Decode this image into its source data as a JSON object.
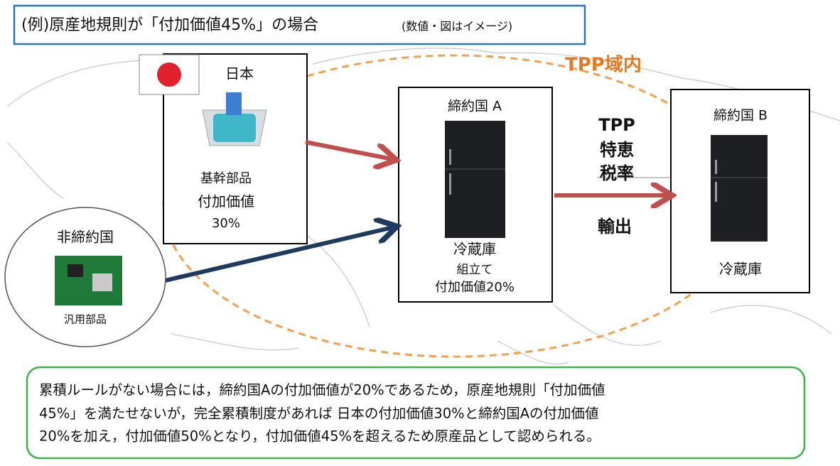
{
  "title": "(例)原産地規則が「付加価値45%」の場合",
  "title_note": "(数値・図はイメージ)",
  "region_label": "TPP域内",
  "japan": {
    "name": "日本",
    "part": "基幹部品",
    "value_label": "付加価値",
    "value": "30%"
  },
  "party_a": {
    "name": "締約国 A",
    "product": "冷蔵庫",
    "process": "組立て",
    "value": "付加価値20%"
  },
  "party_b": {
    "name": "締約国 B",
    "product": "冷蔵庫"
  },
  "tariff": {
    "lines": [
      "TPP",
      "特恵",
      "税率"
    ],
    "export": "輸出"
  },
  "non_party": {
    "name": "非締約国",
    "part": "汎用部品"
  },
  "note": {
    "lines": [
      "累積ルールがない場合には，締約国Aの付加価値が20%であるため，原産地規則「付加価値",
      "45%」を満たせないが，完全累積制度があれば 日本の付加価値30%と締約国Aの付加価値",
      "20%を加え，付加価値50%となり，付加価値45%を超えるため原産品として認められる。"
    ]
  }
}
